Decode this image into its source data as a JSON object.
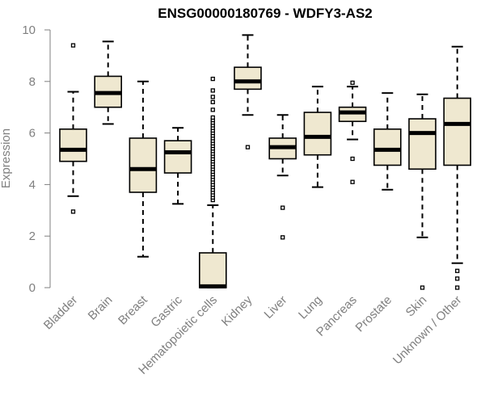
{
  "chart_data": {
    "type": "boxplot",
    "title": "ENSG00000180769 - WDFY3-AS2",
    "xlabel": "",
    "ylabel": "Expression",
    "ylim": [
      0,
      10
    ],
    "yticks": [
      0,
      2,
      4,
      6,
      8,
      10
    ],
    "grid": false,
    "box_fill": "#efe8d0",
    "line_color": "#000000",
    "axis_color": "#7f7f7f",
    "categories": [
      "Bladder",
      "Brain",
      "Breast",
      "Gastric",
      "Hematopoietic cells",
      "Kidney",
      "Liver",
      "Lung",
      "Pancreas",
      "Prostate",
      "Skin",
      "Unknown / Other"
    ],
    "boxes": [
      {
        "name": "Bladder",
        "whisker_low": 3.55,
        "q1": 4.9,
        "median": 5.35,
        "q3": 6.15,
        "whisker_high": 7.6,
        "outliers": [
          2.95,
          9.4
        ]
      },
      {
        "name": "Brain",
        "whisker_low": 6.35,
        "q1": 7.0,
        "median": 7.55,
        "q3": 8.2,
        "whisker_high": 9.55,
        "outliers": []
      },
      {
        "name": "Breast",
        "whisker_low": 1.2,
        "q1": 3.7,
        "median": 4.6,
        "q3": 5.8,
        "whisker_high": 8.0,
        "outliers": []
      },
      {
        "name": "Gastric",
        "whisker_low": 3.25,
        "q1": 4.45,
        "median": 5.25,
        "q3": 5.7,
        "whisker_high": 6.2,
        "outliers": []
      },
      {
        "name": "Hematopoietic cells",
        "whisker_low": 0.0,
        "q1": 0.0,
        "median": 0.05,
        "q3": 1.35,
        "whisker_high": 3.2,
        "outliers": [
          3.4,
          3.5,
          3.6,
          3.7,
          3.8,
          3.9,
          4.0,
          4.1,
          4.2,
          4.3,
          4.4,
          4.5,
          4.6,
          4.7,
          4.8,
          4.9,
          5.0,
          5.1,
          5.2,
          5.3,
          5.4,
          5.5,
          5.6,
          5.7,
          5.8,
          5.9,
          6.0,
          6.1,
          6.2,
          6.3,
          6.4,
          6.5,
          6.6,
          6.9,
          7.2,
          7.4,
          7.65,
          8.1
        ]
      },
      {
        "name": "Kidney",
        "whisker_low": 6.7,
        "q1": 7.7,
        "median": 8.0,
        "q3": 8.55,
        "whisker_high": 9.8,
        "outliers": [
          5.45
        ]
      },
      {
        "name": "Liver",
        "whisker_low": 4.35,
        "q1": 5.0,
        "median": 5.45,
        "q3": 5.8,
        "whisker_high": 6.7,
        "outliers": [
          3.1,
          1.95
        ]
      },
      {
        "name": "Lung",
        "whisker_low": 3.9,
        "q1": 5.15,
        "median": 5.85,
        "q3": 6.8,
        "whisker_high": 7.8,
        "outliers": []
      },
      {
        "name": "Pancreas",
        "whisker_low": 5.75,
        "q1": 6.45,
        "median": 6.8,
        "q3": 7.0,
        "whisker_high": 7.8,
        "outliers": [
          7.95,
          5.0,
          4.1
        ]
      },
      {
        "name": "Prostate",
        "whisker_low": 3.8,
        "q1": 4.75,
        "median": 5.35,
        "q3": 6.15,
        "whisker_high": 7.55,
        "outliers": []
      },
      {
        "name": "Skin",
        "whisker_low": 1.95,
        "q1": 4.6,
        "median": 6.0,
        "q3": 6.55,
        "whisker_high": 7.5,
        "outliers": [
          0.0
        ]
      },
      {
        "name": "Unknown / Other",
        "whisker_low": 0.95,
        "q1": 4.75,
        "median": 6.35,
        "q3": 7.35,
        "whisker_high": 9.35,
        "outliers": [
          0.65,
          0.35,
          0.0
        ]
      }
    ]
  }
}
